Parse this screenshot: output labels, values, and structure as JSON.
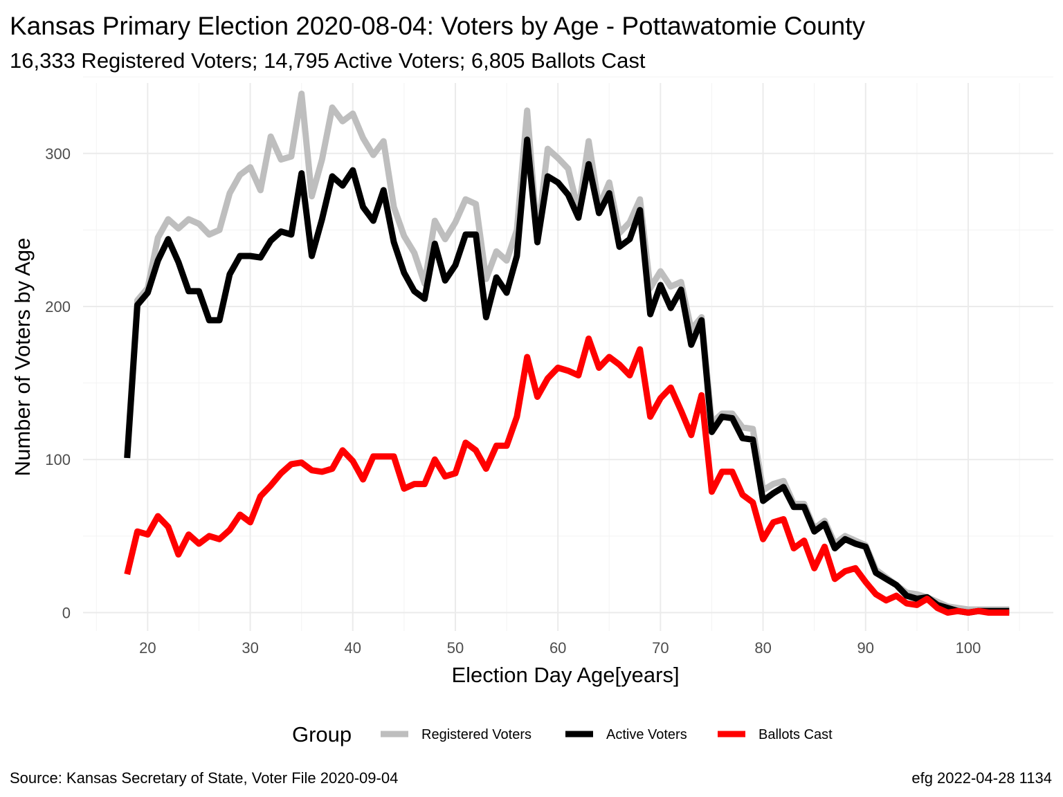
{
  "chart_data": {
    "type": "line",
    "title": "Kansas Primary Election 2020-08-04:  Voters by Age - Pottawatomie County",
    "subtitle": "16,333 Registered Voters; 14,795 Active Voters; 6,805 Ballots Cast",
    "xlabel": "Election Day Age[years]",
    "ylabel": "Number of Voters by Age",
    "xlim": [
      13.7,
      108.3
    ],
    "ylim": [
      -12,
      346
    ],
    "x_ticks": [
      20,
      30,
      40,
      50,
      60,
      70,
      80,
      90,
      100
    ],
    "x_tick_labels": [
      "20",
      "30",
      "40",
      "50",
      "60",
      "70",
      "80",
      "90",
      "100"
    ],
    "y_ticks": [
      0,
      100,
      200,
      300
    ],
    "y_tick_labels": [
      "0",
      "100",
      "200",
      "300"
    ],
    "grid": true,
    "legend": {
      "title": "Group",
      "position": "bottom"
    },
    "caption_left": "Source:  Kansas Secretary of State, Voter File  2020-09-04",
    "caption_right": "efg 2022-04-28 1134",
    "x_start": 18,
    "series": [
      {
        "name": "Registered Voters",
        "color": "#bebebe",
        "values": [
          102,
          204,
          212,
          245,
          257,
          251,
          257,
          254,
          247,
          250,
          274,
          286,
          291,
          276,
          311,
          296,
          298,
          339,
          272,
          296,
          330,
          321,
          326,
          310,
          299,
          308,
          265,
          246,
          235,
          215,
          256,
          244,
          255,
          270,
          267,
          218,
          236,
          230,
          250,
          328,
          245,
          303,
          297,
          290,
          262,
          308,
          265,
          281,
          248,
          255,
          270,
          212,
          223,
          213,
          216,
          185,
          193,
          124,
          130,
          130,
          121,
          120,
          80,
          84,
          86,
          71,
          71,
          55,
          60,
          45,
          50,
          47,
          44,
          28,
          23,
          18,
          13,
          12,
          10,
          7,
          4,
          3,
          2,
          2,
          2,
          2,
          2
        ]
      },
      {
        "name": "Active Voters",
        "color": "#000000",
        "values": [
          101,
          201,
          209,
          230,
          244,
          229,
          210,
          210,
          191,
          191,
          221,
          233,
          233,
          232,
          243,
          249,
          247,
          287,
          233,
          257,
          285,
          279,
          289,
          265,
          256,
          276,
          242,
          222,
          210,
          205,
          241,
          217,
          227,
          247,
          247,
          193,
          219,
          209,
          233,
          309,
          242,
          285,
          281,
          273,
          258,
          293,
          261,
          274,
          239,
          244,
          263,
          195,
          214,
          199,
          211,
          175,
          191,
          118,
          128,
          127,
          114,
          113,
          73,
          78,
          82,
          69,
          69,
          53,
          58,
          42,
          48,
          45,
          43,
          26,
          22,
          18,
          11,
          9,
          10,
          5,
          3,
          1,
          0,
          1,
          1,
          1,
          1
        ]
      },
      {
        "name": "Ballots Cast",
        "color": "#ff0000",
        "values": [
          25,
          53,
          51,
          63,
          56,
          38,
          51,
          45,
          50,
          48,
          54,
          64,
          59,
          76,
          83,
          91,
          97,
          98,
          93,
          92,
          94,
          106,
          99,
          87,
          102,
          102,
          102,
          81,
          84,
          84,
          100,
          89,
          91,
          111,
          106,
          94,
          109,
          109,
          128,
          167,
          141,
          153,
          160,
          158,
          155,
          179,
          160,
          167,
          162,
          155,
          172,
          128,
          140,
          147,
          132,
          116,
          142,
          79,
          92,
          92,
          77,
          72,
          48,
          59,
          61,
          42,
          47,
          29,
          43,
          22,
          27,
          29,
          20,
          12,
          8,
          11,
          6,
          5,
          9,
          3,
          0,
          1,
          0,
          1,
          0,
          0,
          0
        ]
      }
    ]
  }
}
